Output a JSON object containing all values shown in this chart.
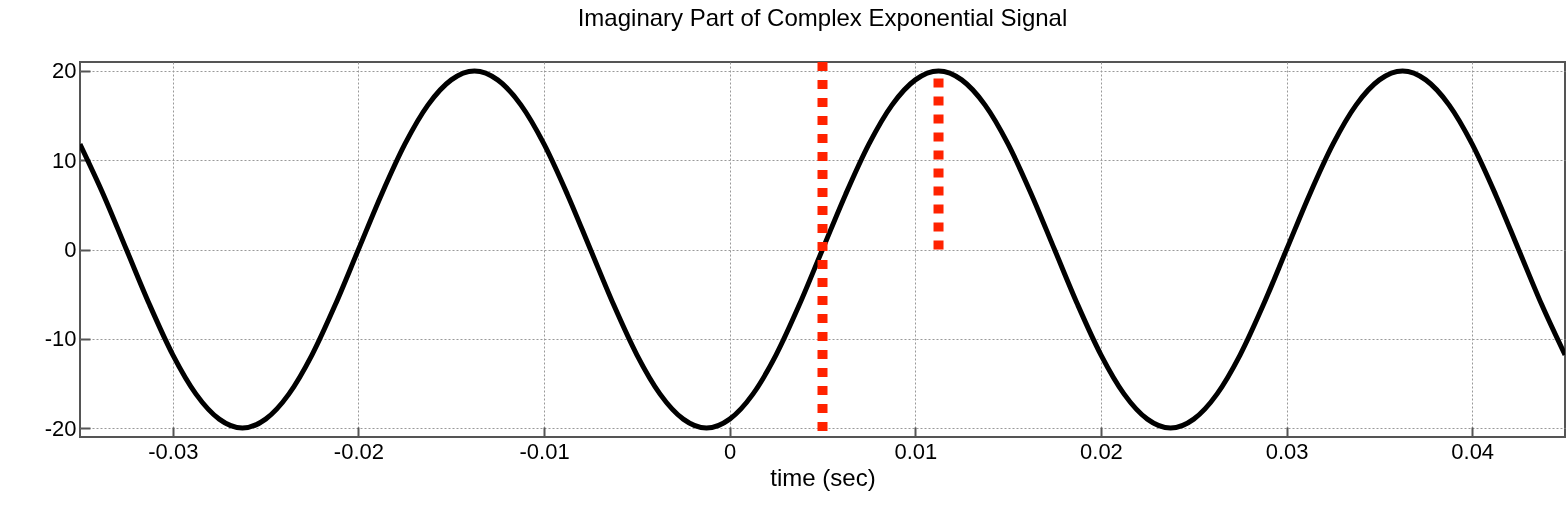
{
  "chart_data": {
    "type": "line",
    "title": "Imaginary Part of Complex Exponential Signal",
    "xlabel": "time  (sec)",
    "x": [
      -0.035,
      -0.03375,
      -0.0325,
      -0.03125,
      -0.03,
      -0.02875,
      -0.0275,
      -0.02625,
      -0.025,
      -0.02375,
      -0.0225,
      -0.02125,
      -0.02,
      -0.01875,
      -0.0175,
      -0.01625,
      -0.015,
      -0.01375,
      -0.0125,
      -0.01125,
      -0.01,
      -0.00875,
      -0.0075,
      -0.00625,
      -0.005,
      -0.00375,
      -0.0025,
      -0.00125,
      0,
      0.00125,
      0.0025,
      0.00375,
      0.005,
      0.00625,
      0.0075,
      0.00875,
      0.01,
      0.01125,
      0.0125,
      0.01375,
      0.015,
      0.01625,
      0.0175,
      0.01875,
      0.02,
      0.02125,
      0.0225,
      0.02375,
      0.025,
      0.02625,
      0.0275,
      0.02875,
      0.03,
      0.03125,
      0.0325,
      0.03375,
      0.035,
      0.03625,
      0.0375,
      0.03875,
      0.04,
      0.04125,
      0.0425,
      0.04375,
      0.045
    ],
    "series": [
      {
        "color": "#000000",
        "values": [
          11.8,
          6.2,
          0,
          -6.2,
          -11.8,
          -16.2,
          -19,
          -20,
          -19,
          -16.2,
          -11.8,
          -6.2,
          0,
          6.2,
          11.8,
          16.2,
          19,
          20,
          19,
          16.2,
          11.8,
          6.2,
          0,
          -6.2,
          -11.8,
          -16.2,
          -19,
          -20,
          -19,
          -16.2,
          -11.8,
          -6.2,
          0,
          6.2,
          11.8,
          16.2,
          19,
          20,
          19,
          16.2,
          11.8,
          6.2,
          0,
          -6.2,
          -11.8,
          -16.2,
          -19,
          -20,
          -19,
          -16.2,
          -11.8,
          -6.2,
          0,
          6.2,
          11.8,
          16.2,
          19,
          20,
          19,
          16.2,
          11.8,
          6.2,
          0,
          -6.2,
          -11.8
        ]
      },
      {
        "type": "line",
        "color": "#ff2200",
        "line_style": "dotted",
        "x": [
          0.01125,
          0.01125
        ],
        "values": [
          0,
          20
        ]
      }
    ],
    "ref_lines": [
      {
        "axis": "x",
        "value": 0.005,
        "color": "#ff2200",
        "line_style": "dotted"
      }
    ],
    "xlim": [
      -0.035,
      0.045
    ],
    "xticks": [
      -0.03,
      -0.02,
      -0.01,
      0,
      0.01,
      0.02,
      0.03,
      0.04
    ],
    "ylim": [
      -21,
      21
    ],
    "yticks": [
      -20,
      -10,
      0,
      10,
      20
    ],
    "grid": true
  }
}
